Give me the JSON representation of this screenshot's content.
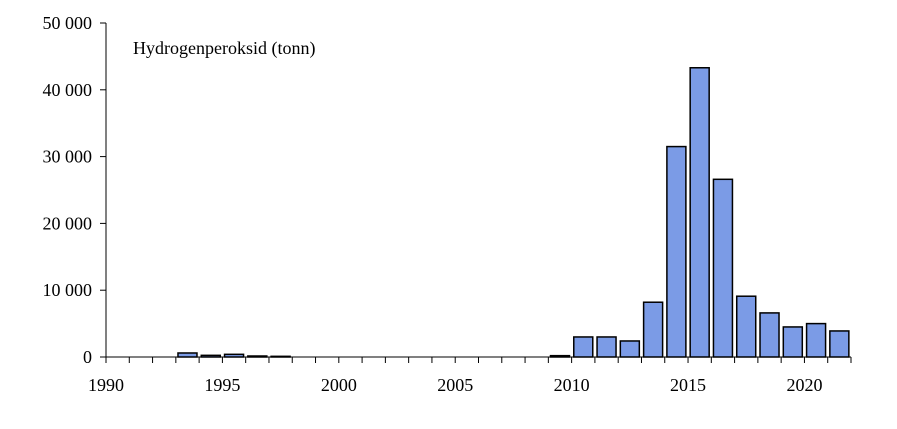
{
  "chart_data": {
    "type": "bar",
    "title": "Hydrogenperoksid (tonn)",
    "xlabel": "",
    "ylabel": "",
    "xlim": [
      1990,
      2022
    ],
    "ylim": [
      0,
      50000
    ],
    "x_ticks": [
      1990,
      1995,
      2000,
      2005,
      2010,
      2015,
      2020
    ],
    "x_tick_labels": [
      "1990",
      "1995",
      "2000",
      "2005",
      "2010",
      "2015",
      "2020"
    ],
    "y_ticks": [
      0,
      10000,
      20000,
      30000,
      40000,
      50000
    ],
    "y_tick_labels": [
      "0",
      "10 000",
      "20 000",
      "30 000",
      "40 000",
      "50 000"
    ],
    "grid": false,
    "legend": "none",
    "bar_color": "#7b9be6",
    "bar_edge_color": "#000000",
    "points": [
      {
        "x": 1993,
        "y": 600
      },
      {
        "x": 1994,
        "y": 250
      },
      {
        "x": 1995,
        "y": 400
      },
      {
        "x": 1996,
        "y": 150
      },
      {
        "x": 1997,
        "y": 100
      },
      {
        "x": 2009,
        "y": 200
      },
      {
        "x": 2010,
        "y": 3000
      },
      {
        "x": 2011,
        "y": 3000
      },
      {
        "x": 2012,
        "y": 2400
      },
      {
        "x": 2013,
        "y": 8200
      },
      {
        "x": 2014,
        "y": 31500
      },
      {
        "x": 2015,
        "y": 43300
      },
      {
        "x": 2016,
        "y": 26600
      },
      {
        "x": 2017,
        "y": 9100
      },
      {
        "x": 2018,
        "y": 6600
      },
      {
        "x": 2019,
        "y": 4500
      },
      {
        "x": 2020,
        "y": 5000
      },
      {
        "x": 2021,
        "y": 3900
      }
    ]
  }
}
